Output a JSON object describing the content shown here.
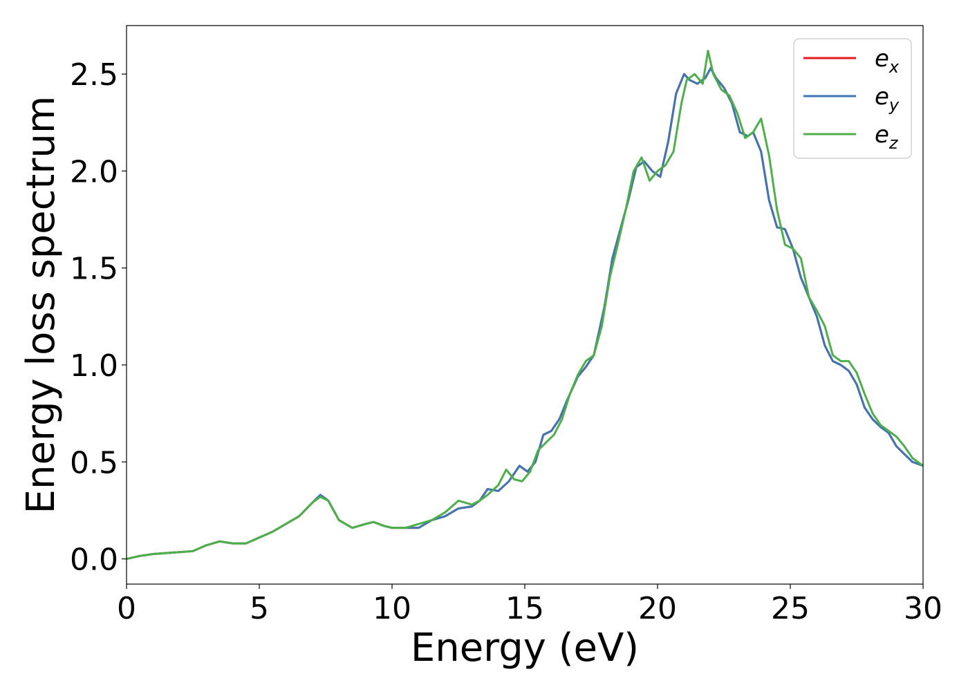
{
  "chart_data": {
    "type": "line",
    "title": "",
    "xlabel": "Energy (eV)",
    "ylabel": "Energy loss spectrum",
    "xlim": [
      0,
      30
    ],
    "ylim": [
      -0.13,
      2.75
    ],
    "xticks": [
      0,
      5,
      10,
      15,
      20,
      25,
      30
    ],
    "xtick_labels": [
      "0",
      "5",
      "10",
      "15",
      "20",
      "25",
      "30"
    ],
    "yticks": [
      0.0,
      0.5,
      1.0,
      1.5,
      2.0,
      2.5
    ],
    "ytick_labels": [
      "0.0",
      "0.5",
      "1.0",
      "1.5",
      "2.0",
      "2.5"
    ],
    "grid": false,
    "legend_position": "top-right",
    "series": [
      {
        "name": "e_x",
        "legend_base": "e",
        "legend_sub": "x",
        "color": "#e41a1c",
        "x": [
          0,
          0.5,
          1,
          1.5,
          2,
          2.5,
          3,
          3.5,
          4,
          4.5,
          5,
          5.5,
          6,
          6.5,
          7,
          7.3,
          7.6,
          8,
          8.5,
          9,
          9.3,
          9.7,
          10,
          10.5,
          11,
          11.5,
          12,
          12.5,
          13,
          13.3,
          13.6,
          14,
          14.4,
          14.8,
          15.1,
          15.4,
          15.7,
          16,
          16.3,
          16.6,
          17,
          17.3,
          17.6,
          18,
          18.3,
          18.6,
          18.9,
          19.2,
          19.5,
          19.8,
          20.1,
          20.4,
          20.7,
          21.0,
          21.2,
          21.5,
          21.8,
          22.0,
          22.2,
          22.5,
          22.8,
          23.1,
          23.4,
          23.6,
          23.9,
          24.2,
          24.5,
          24.8,
          25.1,
          25.4,
          25.7,
          26.0,
          26.3,
          26.6,
          26.9,
          27.2,
          27.5,
          27.8,
          28.1,
          28.4,
          28.7,
          29.0,
          29.3,
          29.6,
          30.0
        ],
        "y": [
          0.0,
          0.015,
          0.025,
          0.03,
          0.035,
          0.04,
          0.07,
          0.09,
          0.08,
          0.08,
          0.11,
          0.14,
          0.18,
          0.22,
          0.29,
          0.33,
          0.3,
          0.2,
          0.16,
          0.18,
          0.19,
          0.17,
          0.16,
          0.16,
          0.16,
          0.2,
          0.22,
          0.26,
          0.27,
          0.3,
          0.36,
          0.35,
          0.4,
          0.48,
          0.45,
          0.5,
          0.64,
          0.66,
          0.72,
          0.82,
          0.94,
          0.99,
          1.05,
          1.3,
          1.55,
          1.7,
          1.85,
          2.02,
          2.05,
          2.0,
          1.97,
          2.15,
          2.4,
          2.5,
          2.47,
          2.45,
          2.48,
          2.53,
          2.48,
          2.43,
          2.35,
          2.2,
          2.18,
          2.2,
          2.1,
          1.85,
          1.71,
          1.7,
          1.6,
          1.45,
          1.35,
          1.25,
          1.1,
          1.02,
          1.0,
          0.97,
          0.9,
          0.78,
          0.72,
          0.68,
          0.65,
          0.58,
          0.54,
          0.5,
          0.48
        ]
      },
      {
        "name": "e_y",
        "legend_base": "e",
        "legend_sub": "y",
        "color": "#3e76b3",
        "x": [
          0,
          0.5,
          1,
          1.5,
          2,
          2.5,
          3,
          3.5,
          4,
          4.5,
          5,
          5.5,
          6,
          6.5,
          7,
          7.3,
          7.6,
          8,
          8.5,
          9,
          9.3,
          9.7,
          10,
          10.5,
          11,
          11.5,
          12,
          12.5,
          13,
          13.3,
          13.6,
          14,
          14.4,
          14.8,
          15.1,
          15.4,
          15.7,
          16,
          16.3,
          16.6,
          17,
          17.3,
          17.6,
          18,
          18.3,
          18.6,
          18.9,
          19.2,
          19.5,
          19.8,
          20.1,
          20.4,
          20.7,
          21.0,
          21.2,
          21.5,
          21.8,
          22.0,
          22.2,
          22.5,
          22.8,
          23.1,
          23.4,
          23.6,
          23.9,
          24.2,
          24.5,
          24.8,
          25.1,
          25.4,
          25.7,
          26.0,
          26.3,
          26.6,
          26.9,
          27.2,
          27.5,
          27.8,
          28.1,
          28.4,
          28.7,
          29.0,
          29.3,
          29.6,
          30.0
        ],
        "y": [
          0.0,
          0.015,
          0.025,
          0.03,
          0.035,
          0.04,
          0.07,
          0.09,
          0.08,
          0.08,
          0.11,
          0.14,
          0.18,
          0.22,
          0.29,
          0.33,
          0.3,
          0.2,
          0.16,
          0.18,
          0.19,
          0.17,
          0.16,
          0.16,
          0.16,
          0.2,
          0.22,
          0.26,
          0.27,
          0.3,
          0.36,
          0.35,
          0.4,
          0.48,
          0.45,
          0.5,
          0.64,
          0.66,
          0.72,
          0.82,
          0.94,
          0.99,
          1.05,
          1.3,
          1.55,
          1.7,
          1.85,
          2.02,
          2.05,
          2.0,
          1.97,
          2.15,
          2.4,
          2.5,
          2.47,
          2.45,
          2.48,
          2.53,
          2.48,
          2.43,
          2.35,
          2.2,
          2.18,
          2.2,
          2.1,
          1.85,
          1.71,
          1.7,
          1.6,
          1.45,
          1.35,
          1.25,
          1.1,
          1.02,
          1.0,
          0.97,
          0.9,
          0.78,
          0.72,
          0.68,
          0.65,
          0.58,
          0.54,
          0.5,
          0.48
        ]
      },
      {
        "name": "e_z",
        "legend_base": "e",
        "legend_sub": "z",
        "color": "#4daf4a",
        "x": [
          0,
          0.5,
          1,
          1.5,
          2,
          2.5,
          3,
          3.5,
          4,
          4.5,
          5,
          5.5,
          6,
          6.5,
          7,
          7.3,
          7.6,
          8,
          8.5,
          9,
          9.3,
          9.7,
          10,
          10.5,
          11,
          11.5,
          12,
          12.5,
          13,
          13.3,
          13.6,
          14,
          14.3,
          14.6,
          14.9,
          15.2,
          15.5,
          15.8,
          16.1,
          16.4,
          16.7,
          17.0,
          17.3,
          17.6,
          17.9,
          18.2,
          18.5,
          18.8,
          19.1,
          19.4,
          19.7,
          20.0,
          20.3,
          20.6,
          20.9,
          21.1,
          21.4,
          21.7,
          21.9,
          22.1,
          22.4,
          22.7,
          23.0,
          23.3,
          23.6,
          23.9,
          24.2,
          24.5,
          24.8,
          25.1,
          25.4,
          25.7,
          26.0,
          26.3,
          26.6,
          26.9,
          27.2,
          27.5,
          27.8,
          28.1,
          28.4,
          28.7,
          29.0,
          29.3,
          29.6,
          30.0
        ],
        "y": [
          0.0,
          0.015,
          0.025,
          0.03,
          0.035,
          0.04,
          0.07,
          0.09,
          0.08,
          0.08,
          0.11,
          0.14,
          0.18,
          0.22,
          0.29,
          0.32,
          0.3,
          0.2,
          0.16,
          0.18,
          0.19,
          0.17,
          0.16,
          0.16,
          0.18,
          0.2,
          0.24,
          0.3,
          0.28,
          0.3,
          0.33,
          0.38,
          0.46,
          0.41,
          0.4,
          0.45,
          0.56,
          0.6,
          0.64,
          0.72,
          0.85,
          0.95,
          1.02,
          1.05,
          1.2,
          1.45,
          1.62,
          1.8,
          2.0,
          2.07,
          1.95,
          2.0,
          2.03,
          2.1,
          2.35,
          2.47,
          2.5,
          2.45,
          2.62,
          2.5,
          2.42,
          2.39,
          2.3,
          2.17,
          2.2,
          2.27,
          2.08,
          1.8,
          1.62,
          1.6,
          1.55,
          1.35,
          1.28,
          1.2,
          1.05,
          1.02,
          1.02,
          0.96,
          0.85,
          0.75,
          0.69,
          0.66,
          0.63,
          0.58,
          0.52,
          0.48
        ]
      }
    ]
  }
}
